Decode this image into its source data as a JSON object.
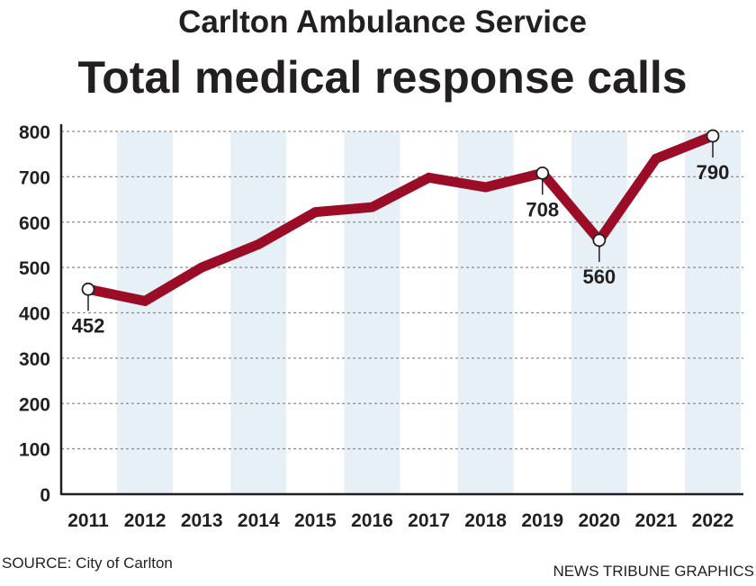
{
  "chart_data": {
    "type": "line",
    "title": "Carlton Ambulance Service",
    "subtitle": "Total medical response calls",
    "xlabel": "",
    "ylabel": "",
    "categories": [
      "2011",
      "2012",
      "2013",
      "2014",
      "2015",
      "2016",
      "2017",
      "2018",
      "2019",
      "2020",
      "2021",
      "2022"
    ],
    "values": [
      452,
      426,
      500,
      551,
      622,
      633,
      698,
      677,
      708,
      560,
      740,
      790
    ],
    "ylim": [
      0,
      800
    ],
    "yticks": [
      0,
      100,
      200,
      300,
      400,
      500,
      600,
      700,
      800
    ],
    "grid": true,
    "alternating_bands": true,
    "data_labels": [
      {
        "category": "2011",
        "text": "452"
      },
      {
        "category": "2019",
        "text": "708"
      },
      {
        "category": "2020",
        "text": "560"
      },
      {
        "category": "2022",
        "text": "790"
      }
    ],
    "colors": {
      "line": "#9b0d27",
      "band": "#e6f0f6",
      "grid": "#8c8c8c",
      "text": "#231f20"
    }
  },
  "footer": {
    "source": "SOURCE: City of Carlton",
    "credit": "NEWS TRIBUNE GRAPHICS"
  }
}
